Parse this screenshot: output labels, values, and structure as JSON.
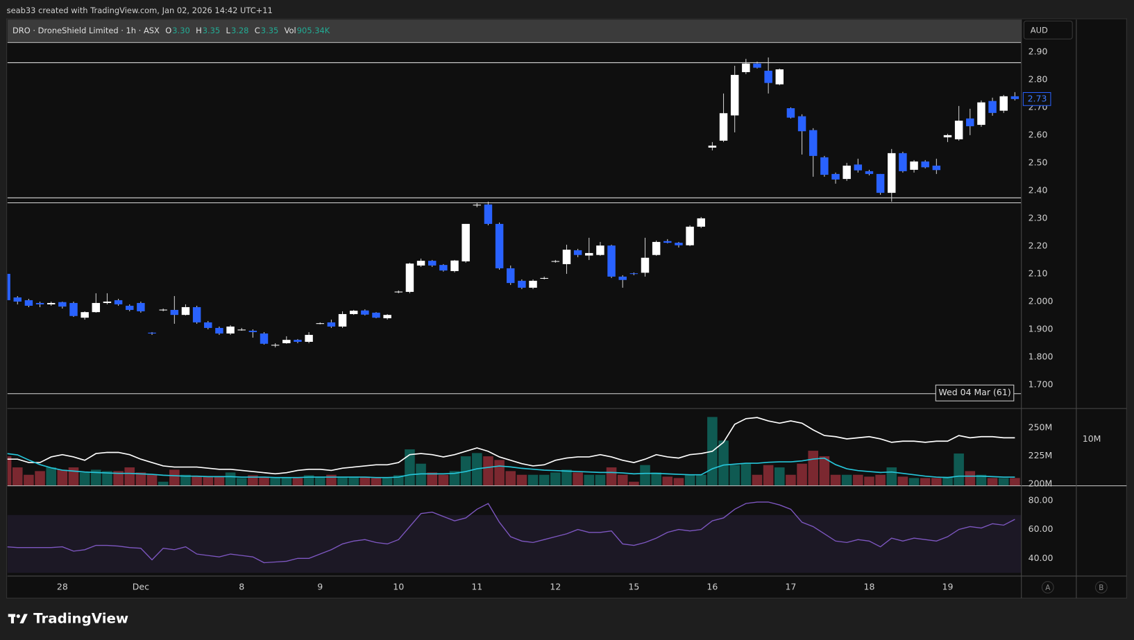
{
  "header": {
    "text": "seab33 created with TradingView.com, Jan 02, 2026 14:42 UTC+11"
  },
  "legend": {
    "symbol": "DRO · DroneShield Limited · 1h · ASX",
    "fields": [
      {
        "label": "O",
        "value": "3.30"
      },
      {
        "label": "H",
        "value": "3.35"
      },
      {
        "label": "L",
        "value": "3.28"
      },
      {
        "label": "C",
        "value": "3.35"
      },
      {
        "label": "Vol",
        "value": "905.34K"
      }
    ]
  },
  "currency": "AUD",
  "buttons": [
    "A",
    "B"
  ],
  "footer": {
    "logo": "TradingView"
  },
  "chart_data": [
    {
      "type": "candlestick",
      "up_color": "#ffffff",
      "down_color": "#2962ff",
      "categories": [
        null,
        null,
        null,
        null,
        null,
        "28",
        null,
        null,
        null,
        null,
        null,
        null,
        "Dec",
        null,
        null,
        null,
        null,
        null,
        null,
        null,
        null,
        "8",
        null,
        null,
        null,
        null,
        null,
        null,
        "9",
        null,
        null,
        null,
        null,
        null,
        null,
        "10",
        null,
        null,
        null,
        null,
        null,
        null,
        "11",
        null,
        null,
        null,
        null,
        null,
        null,
        "12",
        null,
        null,
        null,
        null,
        null,
        null,
        "15",
        null,
        null,
        null,
        null,
        null,
        null,
        "16",
        null,
        null,
        null,
        null,
        null,
        null,
        "17",
        null,
        null,
        null,
        null,
        null,
        null,
        "18",
        null,
        null,
        null,
        null,
        null,
        null,
        "19",
        null,
        null,
        null,
        null,
        null,
        null
      ],
      "open": [
        2.1,
        2.015,
        2.005,
        1.995,
        1.99,
        1.998,
        1.995,
        1.942,
        1.962,
        1.995,
        2.005,
        1.985,
        1.995,
        1.888,
        1.97,
        1.97,
        1.952,
        1.98,
        1.925,
        1.905,
        1.885,
        1.898,
        1.895,
        1.885,
        1.843,
        1.85,
        1.862,
        1.855,
        1.921,
        1.925,
        1.91,
        1.955,
        1.968,
        1.96,
        1.94,
        2.035,
        2.035,
        2.13,
        2.147,
        2.132,
        2.11,
        2.145,
        2.348,
        2.35,
        2.28,
        2.12,
        2.075,
        2.05,
        2.083,
        2.145,
        2.135,
        2.185,
        2.166,
        2.168,
        2.202,
        2.09,
        2.102,
        2.104,
        2.168,
        2.218,
        2.212,
        2.203,
        2.27,
        2.555,
        2.58,
        2.671,
        2.827,
        2.858,
        2.832,
        2.783,
        2.697,
        2.668,
        2.618,
        2.52,
        2.46,
        2.442,
        2.494,
        2.47,
        2.46,
        2.392,
        2.535,
        2.475,
        2.505,
        2.49,
        2.592,
        2.585,
        2.66,
        2.637,
        2.723,
        2.688,
        2.74
      ],
      "high": [
        2.1,
        2.02,
        2.01,
        2.0,
        2.0,
        2.0,
        2.0,
        1.965,
        2.03,
        2.03,
        2.01,
        1.99,
        2.0,
        1.89,
        1.975,
        2.02,
        1.99,
        1.985,
        1.93,
        1.91,
        1.915,
        1.905,
        1.9,
        1.89,
        1.85,
        1.875,
        1.865,
        1.89,
        1.925,
        1.935,
        1.965,
        1.97,
        1.972,
        1.962,
        1.955,
        2.04,
        2.14,
        2.155,
        2.15,
        2.135,
        2.15,
        2.28,
        2.355,
        2.36,
        2.285,
        2.13,
        2.08,
        2.08,
        2.09,
        2.15,
        2.205,
        2.19,
        2.23,
        2.215,
        2.205,
        2.095,
        2.105,
        2.23,
        2.22,
        2.225,
        2.215,
        2.275,
        2.305,
        2.575,
        2.75,
        2.85,
        2.875,
        2.865,
        2.88,
        2.84,
        2.7,
        2.675,
        2.625,
        2.525,
        2.465,
        2.5,
        2.515,
        2.475,
        2.46,
        2.55,
        2.54,
        2.51,
        2.51,
        2.515,
        2.605,
        2.705,
        2.695,
        2.725,
        2.735,
        2.745,
        2.755
      ],
      "low": [
        2.0,
        1.99,
        1.98,
        1.98,
        1.985,
        1.975,
        1.945,
        1.935,
        1.96,
        1.99,
        1.985,
        1.965,
        1.96,
        1.88,
        1.965,
        1.92,
        1.95,
        1.92,
        1.9,
        1.88,
        1.88,
        1.895,
        1.87,
        1.845,
        1.835,
        1.848,
        1.85,
        1.85,
        1.918,
        1.905,
        1.905,
        1.952,
        1.95,
        1.94,
        1.935,
        2.03,
        2.03,
        2.125,
        2.125,
        2.108,
        2.105,
        2.14,
        2.34,
        2.275,
        2.115,
        2.06,
        2.045,
        2.045,
        2.08,
        2.14,
        2.1,
        2.16,
        2.15,
        2.165,
        2.085,
        2.05,
        2.095,
        2.09,
        2.165,
        2.21,
        2.195,
        2.2,
        2.265,
        2.545,
        2.575,
        2.61,
        2.82,
        2.84,
        2.75,
        2.78,
        2.66,
        2.53,
        2.45,
        2.45,
        2.425,
        2.435,
        2.465,
        2.455,
        2.385,
        2.36,
        2.465,
        2.465,
        2.48,
        2.46,
        2.575,
        2.58,
        2.6,
        2.63,
        2.67,
        2.68,
        2.725
      ],
      "close": [
        2.005,
        2.0,
        1.985,
        1.99,
        1.995,
        1.982,
        1.948,
        1.962,
        1.995,
        2.0,
        1.99,
        1.97,
        1.965,
        1.885,
        1.971,
        1.952,
        1.98,
        1.925,
        1.905,
        1.885,
        1.91,
        1.899,
        1.89,
        1.848,
        1.844,
        1.862,
        1.855,
        1.88,
        1.922,
        1.91,
        1.955,
        1.967,
        1.953,
        1.942,
        1.952,
        2.036,
        2.137,
        2.147,
        2.13,
        2.112,
        2.148,
        2.28,
        2.349,
        2.28,
        2.12,
        2.067,
        2.05,
        2.075,
        2.085,
        2.146,
        2.187,
        2.168,
        2.175,
        2.202,
        2.09,
        2.078,
        2.1,
        2.158,
        2.215,
        2.212,
        2.203,
        2.27,
        2.3,
        2.562,
        2.679,
        2.817,
        2.858,
        2.843,
        2.788,
        2.837,
        2.663,
        2.614,
        2.525,
        2.457,
        2.44,
        2.49,
        2.473,
        2.46,
        2.392,
        2.535,
        2.47,
        2.505,
        2.484,
        2.474,
        2.6,
        2.652,
        2.632,
        2.718,
        2.68,
        2.74,
        2.73
      ],
      "ylim": [
        1.616,
        2.936
      ],
      "yticks": [
        {
          "value": 2.9,
          "label": "2.90"
        },
        {
          "value": 2.8,
          "label": "2.80"
        },
        {
          "value": 2.7,
          "label": "2.70"
        },
        {
          "value": 2.6,
          "label": "2.60"
        },
        {
          "value": 2.5,
          "label": "2.50"
        },
        {
          "value": 2.4,
          "label": "2.40"
        },
        {
          "value": 2.3,
          "label": "2.30"
        },
        {
          "value": 2.2,
          "label": "2.20"
        },
        {
          "value": 2.1,
          "label": "2.10"
        },
        {
          "value": 2.0,
          "label": "2.000"
        },
        {
          "value": 1.9,
          "label": "1.900"
        },
        {
          "value": 1.8,
          "label": "1.800"
        },
        {
          "value": 1.7,
          "label": "1.700"
        }
      ],
      "hlines": [
        2.934,
        2.861,
        2.374,
        2.356,
        1.668
      ],
      "hline_color": "#d9d9d9",
      "last_price": 2.73,
      "annotation": "Wed 04 Mar (61)"
    },
    {
      "type": "bar",
      "values": [
        6.3,
        3.9,
        2.3,
        3.1,
        3.9,
        3.4,
        3.9,
        2.8,
        3.4,
        3.1,
        3.1,
        3.9,
        2.8,
        2.3,
        0.8,
        3.4,
        2.3,
        1.9,
        1.9,
        1.9,
        2.8,
        1.6,
        2.2,
        1.9,
        1.6,
        1.6,
        1.6,
        2.2,
        1.9,
        2.3,
        1.9,
        1.9,
        1.9,
        1.6,
        1.6,
        2.2,
        7.8,
        4.7,
        2.8,
        2.3,
        3.1,
        6.3,
        7.0,
        6.3,
        5.5,
        3.1,
        2.3,
        2.3,
        2.3,
        2.8,
        3.4,
        2.8,
        2.3,
        2.3,
        3.9,
        2.3,
        0.8,
        4.4,
        2.8,
        1.9,
        1.6,
        2.3,
        2.3,
        14.8,
        9.7,
        4.4,
        4.7,
        2.3,
        4.4,
        3.9,
        2.3,
        4.7,
        7.5,
        6.3,
        2.3,
        2.3,
        2.3,
        1.9,
        2.3,
        3.9,
        1.9,
        1.6,
        1.6,
        1.6,
        1.9,
        6.9,
        3.1,
        2.3,
        1.6,
        1.6,
        1.6
      ],
      "up_color": "#0f5a52",
      "down_color": "#7b2830",
      "ylim": [
        0,
        16.56
      ],
      "yticks": [
        {
          "value": 10,
          "label": "10M"
        }
      ],
      "y2lim": [
        198.7,
        266.7
      ],
      "y2ticks": [
        {
          "value": 250,
          "label": "250M"
        },
        {
          "value": 225,
          "label": "225M"
        },
        {
          "value": 200,
          "label": "200M"
        }
      ],
      "lines": [
        {
          "color": "#ffffff",
          "axis": "y2",
          "values": [
            222,
            222,
            219,
            219,
            224,
            226,
            224,
            221,
            227,
            228,
            228,
            226,
            222,
            219,
            216,
            215,
            215,
            215,
            214,
            213,
            213,
            212,
            211,
            210,
            209,
            210,
            212,
            213,
            213,
            212,
            214,
            215,
            216,
            217,
            217,
            219,
            226,
            227,
            226,
            224,
            226,
            229,
            232,
            229,
            224,
            221,
            218,
            216,
            217,
            221,
            223,
            224,
            224,
            226,
            224,
            221,
            219,
            222,
            226,
            224,
            223,
            226,
            227,
            229,
            237,
            253,
            258,
            259,
            256,
            254,
            256,
            254,
            248,
            243,
            242,
            240,
            241,
            242,
            240,
            237,
            238,
            238,
            237,
            238,
            238,
            243,
            241,
            242,
            242,
            241,
            241
          ]
        },
        {
          "color": "#26c6da",
          "values": [
            6.9,
            6.6,
            5.5,
            4.5,
            3.8,
            3.3,
            3.1,
            2.9,
            2.8,
            2.7,
            2.6,
            2.6,
            2.5,
            2.4,
            2.2,
            2.1,
            2.0,
            2.0,
            1.9,
            1.9,
            1.9,
            1.8,
            1.8,
            1.8,
            1.7,
            1.7,
            1.7,
            1.8,
            1.8,
            1.8,
            1.8,
            1.8,
            1.8,
            1.7,
            1.7,
            1.8,
            2.3,
            2.5,
            2.5,
            2.5,
            2.6,
            3.0,
            3.6,
            3.9,
            4.2,
            4.0,
            3.7,
            3.5,
            3.3,
            3.2,
            3.1,
            3.0,
            2.9,
            2.8,
            2.8,
            2.7,
            2.5,
            2.6,
            2.6,
            2.5,
            2.4,
            2.3,
            2.3,
            3.6,
            4.4,
            4.6,
            4.8,
            4.8,
            5.0,
            5.1,
            5.1,
            5.3,
            5.7,
            5.9,
            4.5,
            3.6,
            3.2,
            3.0,
            2.8,
            2.9,
            2.6,
            2.3,
            2.0,
            1.8,
            1.7,
            2.0,
            2.0,
            2.0,
            1.9,
            1.8,
            1.8
          ]
        }
      ]
    },
    {
      "type": "line",
      "values": [
        48,
        47.5,
        47.5,
        47.5,
        47.5,
        48,
        45,
        46,
        49,
        49,
        48.5,
        47.5,
        47,
        39,
        47,
        46,
        48,
        43,
        42,
        41,
        43,
        42,
        41,
        37,
        37.5,
        38,
        40,
        40,
        43,
        46,
        50,
        52,
        53,
        51,
        50,
        53,
        62,
        71,
        72,
        69,
        66,
        68,
        74,
        78,
        65,
        55,
        52,
        51,
        53,
        55,
        57,
        60,
        58,
        58,
        59,
        50,
        49,
        51,
        54,
        58,
        60,
        59,
        60,
        66,
        68,
        74,
        78,
        79,
        79,
        77,
        74,
        65,
        62,
        57,
        52,
        51,
        53,
        52,
        48,
        54,
        52,
        54,
        53,
        52,
        55,
        60,
        62,
        61,
        64,
        63,
        67
      ],
      "color": "#7e57c2",
      "ylim": [
        28,
        90
      ],
      "yticks": [
        {
          "value": 80,
          "label": "80.00"
        },
        {
          "value": 60,
          "label": "60.00"
        },
        {
          "value": 40,
          "label": "40.00"
        }
      ],
      "band": [
        30,
        70
      ]
    }
  ]
}
